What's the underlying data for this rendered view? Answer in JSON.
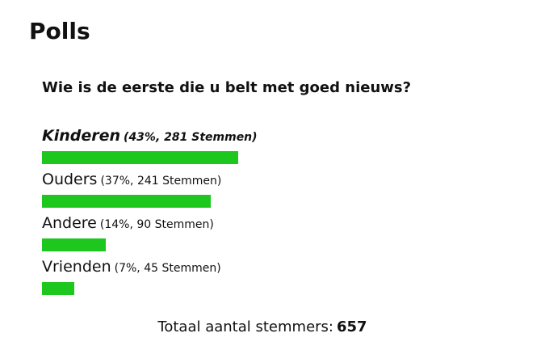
{
  "header": {
    "title": "Polls"
  },
  "poll": {
    "question": "Wie is de eerste die u belt met goed nieuws?",
    "bar_color": "#1ec71e",
    "options": [
      {
        "label": "Kinderen",
        "details": "(43%, 281 Stemmen)",
        "percent": 43
      },
      {
        "label": "Ouders",
        "details": "(37%, 241 Stemmen)",
        "percent": 37
      },
      {
        "label": "Andere",
        "details": "(14%, 90 Stemmen)",
        "percent": 14
      },
      {
        "label": "Vrienden",
        "details": "(7%, 45 Stemmen)",
        "percent": 7
      }
    ],
    "total_label": "Totaal aantal stemmers:",
    "total": 657
  }
}
